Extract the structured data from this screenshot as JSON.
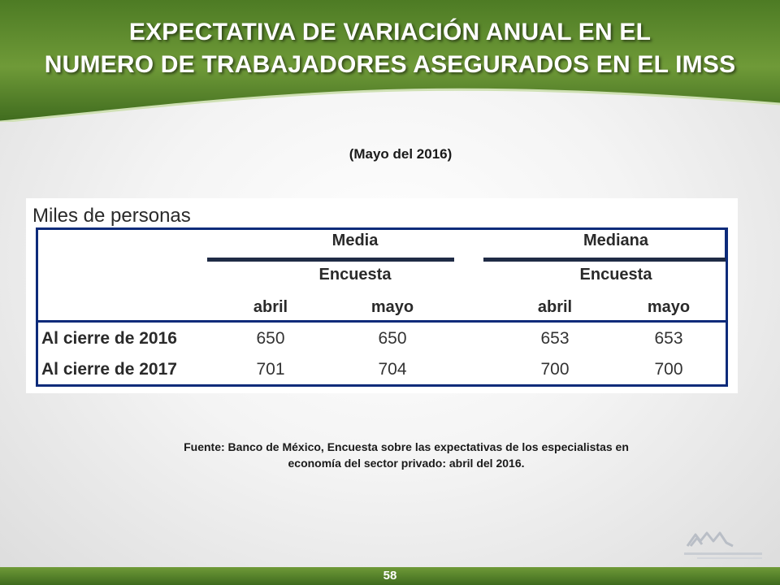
{
  "header": {
    "title_line1": "EXPECTATIVA DE VARIACIÓN ANUAL EN EL",
    "title_line2": "NUMERO DE TRABAJADORES ASEGURADOS EN EL IMSS"
  },
  "subtitle": "(Mayo del 2016)",
  "table": {
    "caption": "Miles de personas",
    "groups": [
      "Media",
      "Mediana"
    ],
    "subgroups": [
      "Encuesta",
      "Encuesta"
    ],
    "columns": [
      "abril",
      "mayo",
      "abril",
      "mayo"
    ],
    "rows": [
      {
        "label": "Al cierre de 2016",
        "values": [
          "650",
          "650",
          "653",
          "653"
        ]
      },
      {
        "label": "Al cierre de 2017",
        "values": [
          "701",
          "704",
          "700",
          "700"
        ]
      }
    ]
  },
  "source_line1": "Fuente: Banco de México, Encuesta sobre las expectativas de los especialistas en",
  "source_line2": "economía del sector privado: abril del 2016.",
  "page_number": "58",
  "colors": {
    "header_green_dark": "#3f6b1e",
    "header_green_light": "#7ba543",
    "table_border_blue": "#0d2b7a"
  }
}
